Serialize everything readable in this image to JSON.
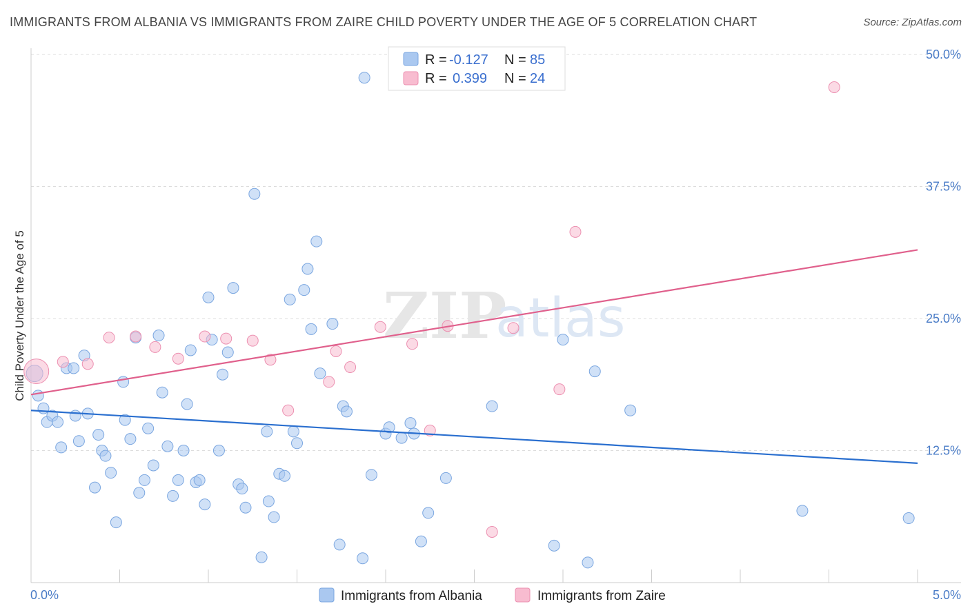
{
  "title": "IMMIGRANTS FROM ALBANIA VS IMMIGRANTS FROM ZAIRE CHILD POVERTY UNDER THE AGE OF 5 CORRELATION CHART",
  "source": "Source: ZipAtlas.com",
  "watermark": {
    "zip": "ZIP",
    "atlas": "atlas"
  },
  "legend": {
    "r_label": "R =",
    "n_label": "N =",
    "entries": [
      {
        "r": "-0.127",
        "n": "85",
        "color": "#aac8f0",
        "stroke": "#7aa6e0"
      },
      {
        "r": "0.399",
        "n": "24",
        "color": "#f8bcd0",
        "stroke": "#ec8fb0"
      }
    ]
  },
  "bottom_legend": [
    {
      "label": "Immigrants from Albania",
      "color": "#aac8f0",
      "stroke": "#7aa6e0"
    },
    {
      "label": "Immigrants from Zaire",
      "color": "#f8bcd0",
      "stroke": "#ec8fb0"
    }
  ],
  "chart_data": {
    "type": "scatter",
    "title": "IMMIGRANTS FROM ALBANIA VS IMMIGRANTS FROM ZAIRE CHILD POVERTY UNDER THE AGE OF 5 CORRELATION CHART",
    "xlabel": "",
    "ylabel": "Child Poverty Under the Age of 5",
    "xlim": [
      0,
      5
    ],
    "ylim": [
      0,
      50
    ],
    "x_tick_labels": [
      "0.0%",
      "5.0%"
    ],
    "y_ticks": [
      12.5,
      25.0,
      37.5,
      50.0
    ],
    "y_tick_labels": [
      "12.5%",
      "25.0%",
      "37.5%",
      "50.0%"
    ],
    "grid": true,
    "legend_position": "top-center",
    "series": [
      {
        "name": "Immigrants from Albania",
        "color": "#aac8f0",
        "stroke": "#7aa6e0",
        "line_color": "#2a6fcf",
        "trend": {
          "x": [
            0,
            5
          ],
          "y": [
            16.3,
            11.3
          ]
        },
        "points": [
          [
            0.02,
            19.8
          ],
          [
            0.04,
            17.7
          ],
          [
            0.07,
            16.5
          ],
          [
            0.09,
            15.2
          ],
          [
            0.12,
            15.8
          ],
          [
            0.15,
            15.2
          ],
          [
            0.17,
            12.8
          ],
          [
            0.2,
            20.3
          ],
          [
            0.24,
            20.3
          ],
          [
            0.25,
            15.8
          ],
          [
            0.27,
            13.4
          ],
          [
            0.3,
            21.5
          ],
          [
            0.32,
            16.0
          ],
          [
            0.36,
            9.0
          ],
          [
            0.38,
            14.0
          ],
          [
            0.4,
            12.5
          ],
          [
            0.42,
            12.0
          ],
          [
            0.45,
            10.4
          ],
          [
            0.48,
            5.7
          ],
          [
            0.52,
            19.0
          ],
          [
            0.53,
            15.4
          ],
          [
            0.56,
            13.6
          ],
          [
            0.59,
            23.2
          ],
          [
            0.61,
            8.5
          ],
          [
            0.64,
            9.7
          ],
          [
            0.66,
            14.6
          ],
          [
            0.69,
            11.1
          ],
          [
            0.72,
            23.4
          ],
          [
            0.74,
            18.0
          ],
          [
            0.77,
            12.9
          ],
          [
            0.8,
            8.2
          ],
          [
            0.83,
            9.7
          ],
          [
            0.86,
            12.5
          ],
          [
            0.88,
            16.9
          ],
          [
            0.9,
            22.0
          ],
          [
            0.93,
            9.5
          ],
          [
            0.95,
            9.7
          ],
          [
            0.98,
            7.4
          ],
          [
            1.0,
            27.0
          ],
          [
            1.02,
            23.0
          ],
          [
            1.06,
            12.5
          ],
          [
            1.08,
            19.7
          ],
          [
            1.11,
            21.8
          ],
          [
            1.14,
            27.9
          ],
          [
            1.17,
            9.3
          ],
          [
            1.19,
            8.9
          ],
          [
            1.21,
            7.1
          ],
          [
            1.26,
            36.8
          ],
          [
            1.3,
            2.4
          ],
          [
            1.33,
            14.3
          ],
          [
            1.34,
            7.7
          ],
          [
            1.37,
            6.2
          ],
          [
            1.4,
            10.3
          ],
          [
            1.43,
            10.1
          ],
          [
            1.46,
            26.8
          ],
          [
            1.48,
            14.3
          ],
          [
            1.5,
            13.2
          ],
          [
            1.54,
            27.7
          ],
          [
            1.56,
            29.7
          ],
          [
            1.58,
            24.0
          ],
          [
            1.61,
            32.3
          ],
          [
            1.63,
            19.8
          ],
          [
            1.7,
            24.5
          ],
          [
            1.74,
            3.6
          ],
          [
            1.76,
            16.7
          ],
          [
            1.78,
            16.2
          ],
          [
            1.87,
            2.3
          ],
          [
            1.88,
            47.8
          ],
          [
            1.92,
            10.2
          ],
          [
            2.0,
            14.1
          ],
          [
            2.02,
            14.7
          ],
          [
            2.09,
            13.7
          ],
          [
            2.14,
            15.1
          ],
          [
            2.16,
            14.1
          ],
          [
            2.2,
            3.9
          ],
          [
            2.24,
            6.6
          ],
          [
            2.34,
            9.9
          ],
          [
            2.6,
            16.7
          ],
          [
            2.95,
            3.5
          ],
          [
            3.0,
            23.0
          ],
          [
            3.14,
            1.9
          ],
          [
            3.18,
            20.0
          ],
          [
            3.38,
            16.3
          ],
          [
            4.35,
            6.8
          ],
          [
            4.95,
            6.1
          ]
        ]
      },
      {
        "name": "Immigrants from Zaire",
        "color": "#f8bcd0",
        "stroke": "#ec8fb0",
        "line_color": "#e0608c",
        "trend": {
          "x": [
            0,
            5
          ],
          "y": [
            17.8,
            31.5
          ]
        },
        "points": [
          [
            0.03,
            20.0
          ],
          [
            0.18,
            20.9
          ],
          [
            0.32,
            20.7
          ],
          [
            0.44,
            23.2
          ],
          [
            0.59,
            23.3
          ],
          [
            0.7,
            22.3
          ],
          [
            0.83,
            21.2
          ],
          [
            0.98,
            23.3
          ],
          [
            1.1,
            23.1
          ],
          [
            1.25,
            22.9
          ],
          [
            1.35,
            21.1
          ],
          [
            1.45,
            16.3
          ],
          [
            1.68,
            19.0
          ],
          [
            1.72,
            21.9
          ],
          [
            1.8,
            20.4
          ],
          [
            1.97,
            24.2
          ],
          [
            2.15,
            22.6
          ],
          [
            2.25,
            14.4
          ],
          [
            2.35,
            24.3
          ],
          [
            2.6,
            4.8
          ],
          [
            2.72,
            24.1
          ],
          [
            2.98,
            18.3
          ],
          [
            3.07,
            33.2
          ],
          [
            4.53,
            46.9
          ]
        ]
      }
    ]
  }
}
